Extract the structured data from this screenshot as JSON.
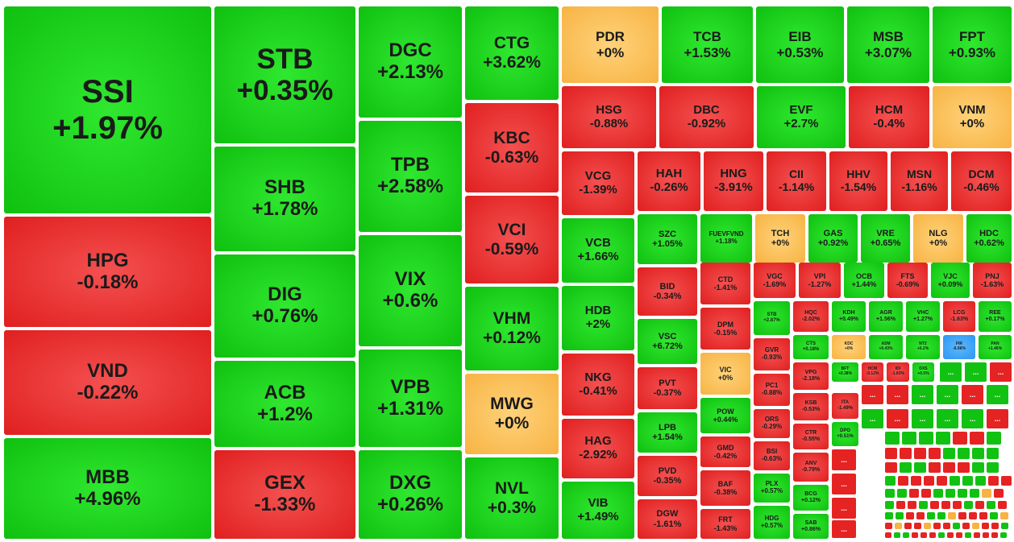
{
  "chart_data": {
    "type": "treemap",
    "title": "",
    "colors": {
      "up": "#10c010",
      "down": "#e01f1f",
      "flat": "#f7b343",
      "floor": "#2d96f0"
    },
    "items": [
      {
        "symbol": "SSI",
        "change": "+1.97%",
        "value": 1.97
      },
      {
        "symbol": "STB",
        "change": "+0.35%",
        "value": 0.35
      },
      {
        "symbol": "DGC",
        "change": "+2.13%",
        "value": 2.13
      },
      {
        "symbol": "CTG",
        "change": "+3.62%",
        "value": 3.62
      },
      {
        "symbol": "PDR",
        "change": "+0%",
        "value": 0
      },
      {
        "symbol": "TCB",
        "change": "+1.53%",
        "value": 1.53
      },
      {
        "symbol": "EIB",
        "change": "+0.53%",
        "value": 0.53
      },
      {
        "symbol": "MSB",
        "change": "+3.07%",
        "value": 3.07
      },
      {
        "symbol": "FPT",
        "change": "+0.93%",
        "value": 0.93
      },
      {
        "symbol": "HSG",
        "change": "-0.88%",
        "value": -0.88
      },
      {
        "symbol": "DBC",
        "change": "-0.92%",
        "value": -0.92
      },
      {
        "symbol": "EVF",
        "change": "+2.7%",
        "value": 2.7
      },
      {
        "symbol": "HCM",
        "change": "-0.4%",
        "value": -0.4
      },
      {
        "symbol": "VNM",
        "change": "+0%",
        "value": 0
      },
      {
        "symbol": "KBC",
        "change": "-0.63%",
        "value": -0.63
      },
      {
        "symbol": "TPB",
        "change": "+2.58%",
        "value": 2.58
      },
      {
        "symbol": "SHB",
        "change": "+1.78%",
        "value": 1.78
      },
      {
        "symbol": "HPG",
        "change": "-0.18%",
        "value": -0.18
      },
      {
        "symbol": "VCG",
        "change": "-1.39%",
        "value": -1.39
      },
      {
        "symbol": "HAH",
        "change": "-0.26%",
        "value": -0.26
      },
      {
        "symbol": "HNG",
        "change": "-3.91%",
        "value": -3.91
      },
      {
        "symbol": "CII",
        "change": "-1.14%",
        "value": -1.14
      },
      {
        "symbol": "HHV",
        "change": "-1.54%",
        "value": -1.54
      },
      {
        "symbol": "MSN",
        "change": "-1.16%",
        "value": -1.16
      },
      {
        "symbol": "DCM",
        "change": "-0.46%",
        "value": -0.46
      },
      {
        "symbol": "VCI",
        "change": "-0.59%",
        "value": -0.59
      },
      {
        "symbol": "VIX",
        "change": "+0.6%",
        "value": 0.6
      },
      {
        "symbol": "DIG",
        "change": "+0.76%",
        "value": 0.76
      },
      {
        "symbol": "VND",
        "change": "-0.22%",
        "value": -0.22
      },
      {
        "symbol": "SZC",
        "change": "+1.05%",
        "value": 1.05
      },
      {
        "symbol": "FUEVFVND",
        "change": "+1.18%",
        "value": 1.18
      },
      {
        "symbol": "TCH",
        "change": "+0%",
        "value": 0
      },
      {
        "symbol": "GAS",
        "change": "+0.92%",
        "value": 0.92
      },
      {
        "symbol": "VRE",
        "change": "+0.65%",
        "value": 0.65
      },
      {
        "symbol": "NLG",
        "change": "+0%",
        "value": 0
      },
      {
        "symbol": "HDC",
        "change": "+0.62%",
        "value": 0.62
      },
      {
        "symbol": "VCB",
        "change": "+1.66%",
        "value": 1.66
      },
      {
        "symbol": "CTD",
        "change": "-1.41%",
        "value": -1.41
      },
      {
        "symbol": "VGC",
        "change": "-1.69%",
        "value": -1.69
      },
      {
        "symbol": "VPI",
        "change": "-1.27%",
        "value": -1.27
      },
      {
        "symbol": "OCB",
        "change": "+1.44%",
        "value": 1.44
      },
      {
        "symbol": "FTS",
        "change": "-0.69%",
        "value": -0.69
      },
      {
        "symbol": "VJC",
        "change": "+0.09%",
        "value": 0.09
      },
      {
        "symbol": "PNJ",
        "change": "-1.63%",
        "value": -1.63
      },
      {
        "symbol": "BID",
        "change": "-0.34%",
        "value": -0.34
      },
      {
        "symbol": "STB",
        "change": "+2.87%",
        "value": 2.87
      },
      {
        "symbol": "HQC",
        "change": "-2.02%",
        "value": -2.02
      },
      {
        "symbol": "KDH",
        "change": "+0.49%",
        "value": 0.49
      },
      {
        "symbol": "AGR",
        "change": "+1.56%",
        "value": 1.56
      },
      {
        "symbol": "VHC",
        "change": "+1.27%",
        "value": 1.27
      },
      {
        "symbol": "LCG",
        "change": "-1.63%",
        "value": -1.63
      },
      {
        "symbol": "REE",
        "change": "+0.17%",
        "value": 0.17
      },
      {
        "symbol": "HDB",
        "change": "+2%",
        "value": 2
      },
      {
        "symbol": "VHM",
        "change": "+0.12%",
        "value": 0.12
      },
      {
        "symbol": "DPM",
        "change": "-0.15%",
        "value": -0.15
      },
      {
        "symbol": "VSC",
        "change": "+6.72%",
        "value": 6.72
      },
      {
        "symbol": "CTS",
        "change": "+0.18%",
        "value": 0.18
      },
      {
        "symbol": "KDC",
        "change": "+0%",
        "value": 0
      },
      {
        "symbol": "ASM",
        "change": "+0.43%",
        "value": 0.43
      },
      {
        "symbol": "NT2",
        "change": "+0.2%",
        "value": 0.2
      },
      {
        "symbol": "FIR",
        "change": "-6.96%",
        "value": -6.96
      },
      {
        "symbol": "PAN",
        "change": "+1.46%",
        "value": 1.46
      },
      {
        "symbol": "GVR",
        "change": "-0.93%",
        "value": -0.93
      },
      {
        "symbol": "VIC",
        "change": "+0%",
        "value": 0
      },
      {
        "symbol": "NKG",
        "change": "-0.41%",
        "value": -0.41
      },
      {
        "symbol": "VPG",
        "change": "-2.18%",
        "value": -2.18
      },
      {
        "symbol": "BFT",
        "change": "+0.38%",
        "value": 0.38
      },
      {
        "symbol": "HCM",
        "change": "-0.12%",
        "value": -0.12
      },
      {
        "symbol": "IDI",
        "change": "-1.83%",
        "value": -1.83
      },
      {
        "symbol": "DXS",
        "change": "+0.5%",
        "value": 0.5
      },
      {
        "symbol": "PVT",
        "change": "-0.37%",
        "value": -0.37
      },
      {
        "symbol": "PC1",
        "change": "-0.88%",
        "value": -0.88
      },
      {
        "symbol": "KSB",
        "change": "-0.53%",
        "value": -0.53
      },
      {
        "symbol": "ITA",
        "change": "-1.49%",
        "value": -1.49
      },
      {
        "symbol": "POW",
        "change": "+0.44%",
        "value": 0.44
      },
      {
        "symbol": "ORS",
        "change": "-0.29%",
        "value": -0.29
      },
      {
        "symbol": "DPG",
        "change": "+0.51%",
        "value": 0.51
      },
      {
        "symbol": "CTR",
        "change": "-0.55%",
        "value": -0.55
      },
      {
        "symbol": "ACB",
        "change": "+1.2%",
        "value": 1.2
      },
      {
        "symbol": "VPB",
        "change": "+1.31%",
        "value": 1.31
      },
      {
        "symbol": "MWG",
        "change": "+0%",
        "value": 0
      },
      {
        "symbol": "MBB",
        "change": "+4.96%",
        "value": 4.96
      },
      {
        "symbol": "LPB",
        "change": "+1.54%",
        "value": 1.54
      },
      {
        "symbol": "HAG",
        "change": "-2.92%",
        "value": -2.92
      },
      {
        "symbol": "GMD",
        "change": "-0.42%",
        "value": -0.42
      },
      {
        "symbol": "BSI",
        "change": "-0.63%",
        "value": -0.63
      },
      {
        "symbol": "ANV",
        "change": "-0.79%",
        "value": -0.79
      },
      {
        "symbol": "PVD",
        "change": "-0.35%",
        "value": -0.35
      },
      {
        "symbol": "BAF",
        "change": "-0.38%",
        "value": -0.38
      },
      {
        "symbol": "PLX",
        "change": "+0.57%",
        "value": 0.57
      },
      {
        "symbol": "BCG",
        "change": "+0.12%",
        "value": 0.12
      },
      {
        "symbol": "GEX",
        "change": "-1.33%",
        "value": -1.33
      },
      {
        "symbol": "DXG",
        "change": "+0.26%",
        "value": 0.26
      },
      {
        "symbol": "NVL",
        "change": "+0.3%",
        "value": 0.3
      },
      {
        "symbol": "VIB",
        "change": "+1.49%",
        "value": 1.49
      },
      {
        "symbol": "DGW",
        "change": "-1.61%",
        "value": -1.61
      },
      {
        "symbol": "FRT",
        "change": "-1.43%",
        "value": -1.43
      },
      {
        "symbol": "HDG",
        "change": "+0.57%",
        "value": 0.57
      },
      {
        "symbol": "SAB",
        "change": "+0.86%",
        "value": 0.86
      }
    ],
    "small_items": {
      "ellipsis_label": "...",
      "status": [
        "u",
        "u",
        "d",
        "d",
        "d",
        "u",
        "u",
        "d",
        "u",
        "u",
        "d",
        "u",
        "u",
        "u",
        "d",
        "d",
        "d",
        "d",
        "d",
        "u",
        "u",
        "u",
        "u",
        "d",
        "d",
        "u",
        "d",
        "d",
        "d",
        "d",
        "u",
        "u",
        "u",
        "u",
        "d",
        "u",
        "u",
        "d",
        "d",
        "d",
        "u",
        "u",
        "u",
        "d",
        "d",
        "d",
        "d",
        "u",
        "u",
        "u",
        "d",
        "d",
        "u",
        "u",
        "d",
        "d",
        "u",
        "u",
        "u",
        "u",
        "f",
        "d",
        "u",
        "d",
        "d",
        "u",
        "d",
        "d",
        "d",
        "u",
        "d",
        "u",
        "d",
        "u",
        "u",
        "d",
        "d",
        "u",
        "u",
        "f",
        "d",
        "d",
        "d",
        "u",
        "f",
        "d",
        "f",
        "d",
        "d",
        "f",
        "d",
        "d",
        "u",
        "d",
        "f",
        "d",
        "d",
        "u",
        "d",
        "u",
        "u",
        "d",
        "d",
        "d",
        "u",
        "d",
        "d",
        "u",
        "d",
        "d",
        "d",
        "u",
        "f",
        "d",
        "u",
        "u",
        "u",
        "u",
        "d",
        "u",
        "d",
        "u",
        "u",
        "d",
        "d",
        "d",
        "u",
        "d",
        "d",
        "u",
        "d",
        "u",
        "f",
        "d",
        "u",
        "d",
        "d",
        "u",
        "u",
        "d",
        "d",
        "d",
        "u",
        "d",
        "d",
        "d",
        "d",
        "u",
        "d",
        "f",
        "d",
        "d",
        "d",
        "u"
      ]
    }
  }
}
